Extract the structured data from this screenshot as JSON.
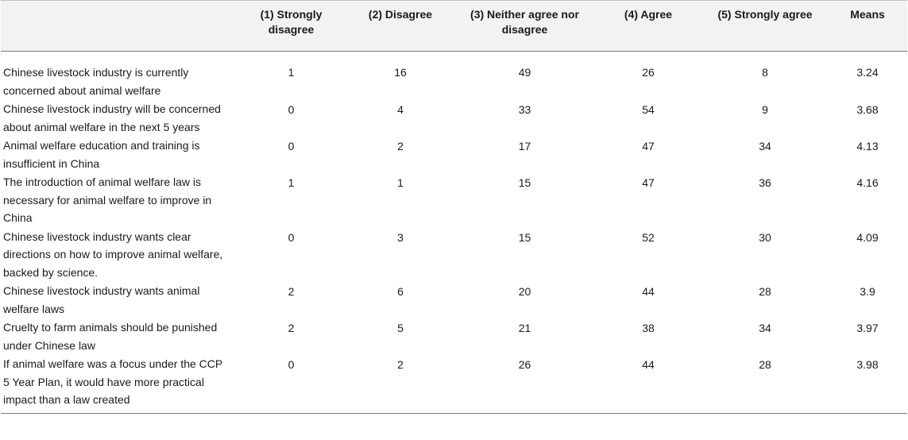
{
  "table": {
    "headers": [
      "",
      "(1) Strongly disagree",
      "(2) Disagree",
      "(3) Neither agree nor disagree",
      "(4) Agree",
      "(5) Strongly agree",
      "Means"
    ],
    "rows": [
      {
        "statement": "Chinese livestock industry is currently concerned about animal welfare",
        "values": [
          "1",
          "16",
          "49",
          "26",
          "8",
          "3.24"
        ]
      },
      {
        "statement": "Chinese livestock industry will be concerned about animal welfare in the next 5 years",
        "values": [
          "0",
          "4",
          "33",
          "54",
          "9",
          "3.68"
        ]
      },
      {
        "statement": "Animal welfare education and training is insufficient in China",
        "values": [
          "0",
          "2",
          "17",
          "47",
          "34",
          "4.13"
        ]
      },
      {
        "statement": "The introduction of animal welfare law is necessary for animal welfare to improve in China",
        "values": [
          "1",
          "1",
          "15",
          "47",
          "36",
          "4.16"
        ]
      },
      {
        "statement": "Chinese livestock industry wants clear directions on how to improve animal welfare, backed by science.",
        "values": [
          "0",
          "3",
          "15",
          "52",
          "30",
          "4.09"
        ]
      },
      {
        "statement": "Chinese livestock industry wants animal welfare laws",
        "values": [
          "2",
          "6",
          "20",
          "44",
          "28",
          "3.9"
        ]
      },
      {
        "statement": "Cruelty to farm animals should be punished under Chinese law",
        "values": [
          "2",
          "5",
          "21",
          "38",
          "34",
          "3.97"
        ]
      },
      {
        "statement": "If animal welfare was a focus under the CCP 5 Year Plan, it would have more practical impact than a law created",
        "values": [
          "0",
          "2",
          "26",
          "44",
          "28",
          "3.98"
        ]
      }
    ]
  }
}
